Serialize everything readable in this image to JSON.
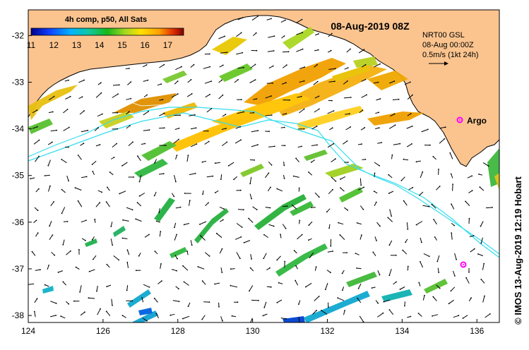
{
  "map": {
    "date_title": "08-Aug-2019 08Z",
    "legend": {
      "title": "4h comp, p50, All Sats",
      "ticks": [
        "11",
        "12",
        "13",
        "14",
        "15",
        "16",
        "17"
      ],
      "range_c": [
        11,
        17.7
      ]
    },
    "info": {
      "line1": "NRT00 GSL",
      "line2": "08-Aug 00:00Z",
      "line3": "0.5m/s (1kt 24h)"
    },
    "argo_label": "Argo",
    "credit": "© IMOS 13-Aug-2019 12:19 Hobart",
    "x_ticks": [
      "124",
      "126",
      "128",
      "130",
      "132",
      "134",
      "136"
    ],
    "y_ticks": [
      "-32",
      "-33",
      "-34",
      "-35",
      "-36",
      "-37",
      "-38"
    ],
    "lon_range": [
      124,
      136.6
    ],
    "lat_range": [
      -38.15,
      -31.45
    ],
    "colors": {
      "land": "#fbc48f",
      "ocean": "#ffffff",
      "track": "#33ddee",
      "argo": "#ff00ff"
    }
  }
}
